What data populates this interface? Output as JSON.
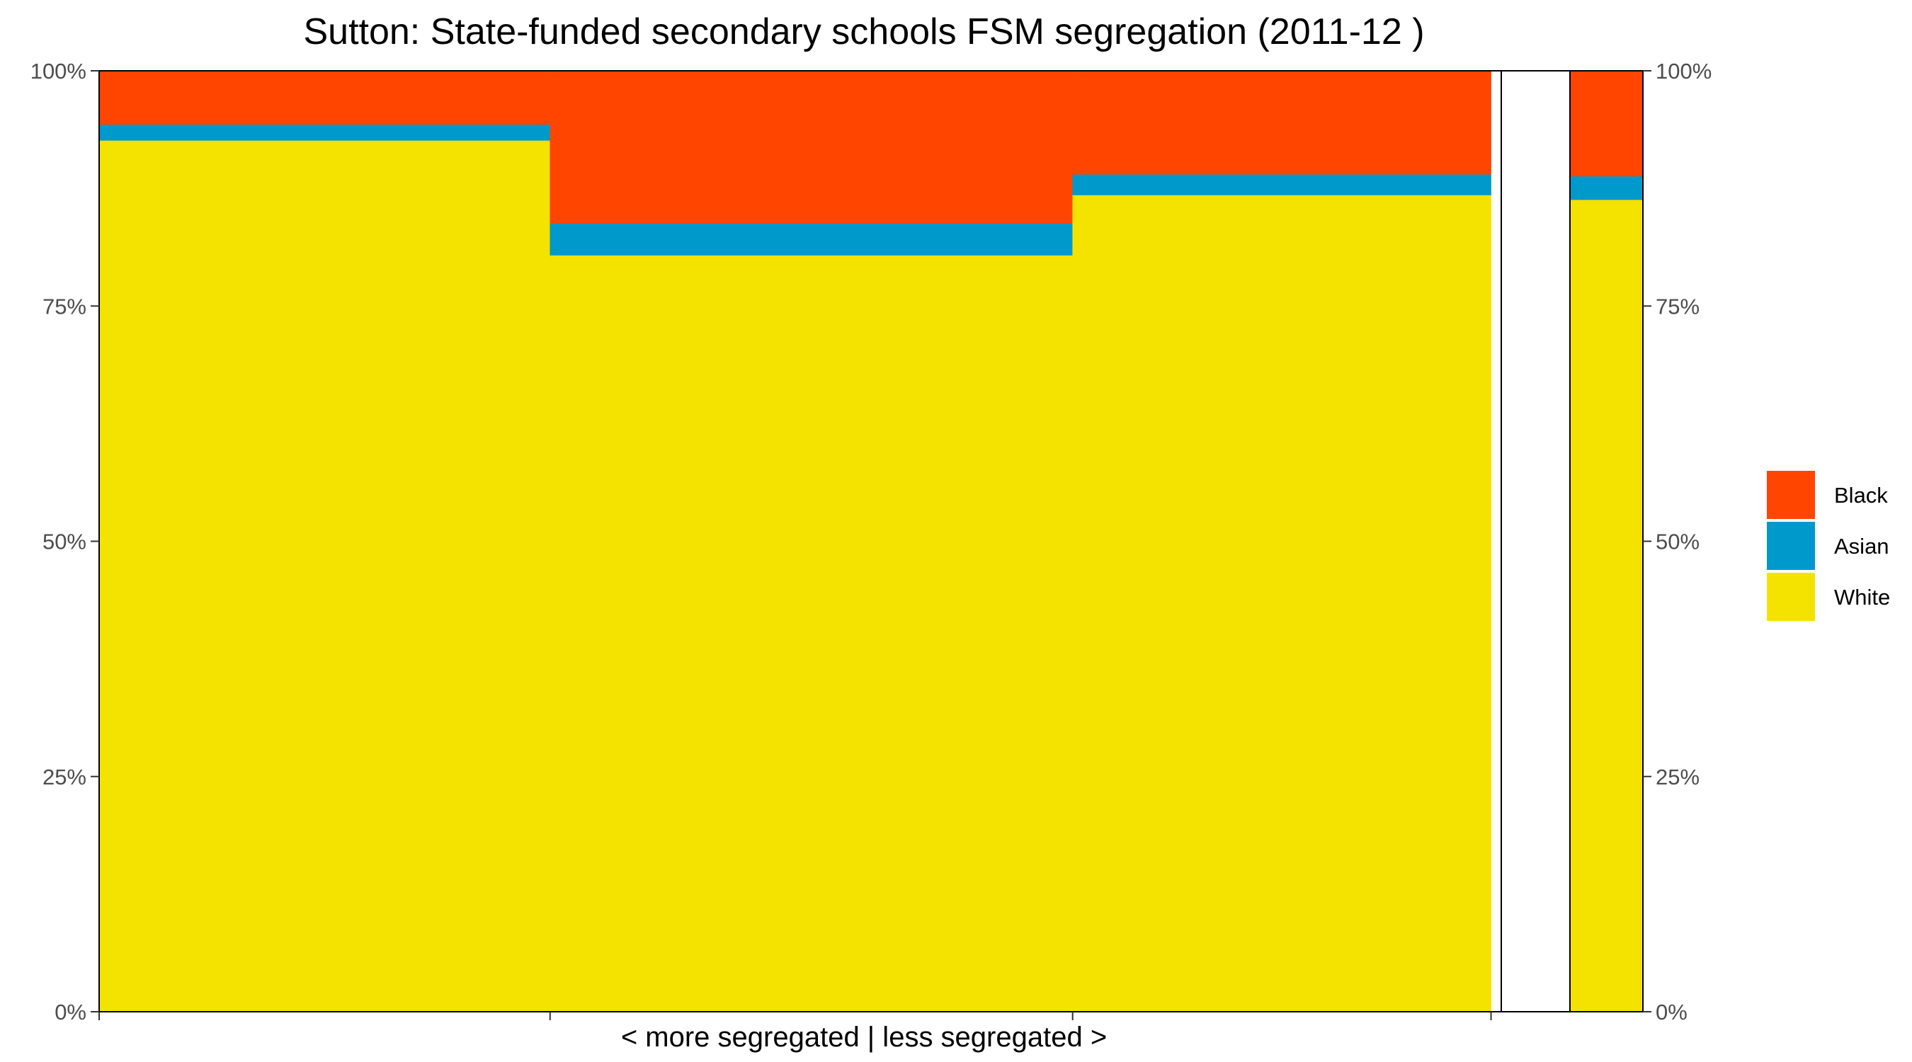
{
  "chart_data": {
    "type": "bar",
    "title": "Sutton: State-funded secondary schools FSM segregation (2011-12 )",
    "xlabel": "< more segregated | less segregated >",
    "ylabel": "",
    "ylim": [
      0,
      1
    ],
    "y_ticks_left": [
      "0%",
      "25%",
      "50%",
      "75%",
      "100%"
    ],
    "y_ticks_right": [
      "0%",
      "25%",
      "50%",
      "75%",
      "100%"
    ],
    "colors": {
      "White": "#f4e300",
      "Asian": "#0099cc",
      "Black": "#ff4500"
    },
    "legend": {
      "placement": "right",
      "entries": [
        "Black",
        "Asian",
        "White"
      ]
    },
    "grid": false,
    "groups": [
      {
        "width_fraction": 0.3216,
        "White": 0.926,
        "Asian": 0.017,
        "Black": 0.057
      },
      {
        "width_fraction": 0.3727,
        "White": 0.804,
        "Asian": 0.034,
        "Black": 0.162
      },
      {
        "width_fraction": 0.2984,
        "White": 0.868,
        "Asian": 0.022,
        "Black": 0.11
      }
    ],
    "overall": {
      "White": 0.863,
      "Asian": 0.025,
      "Black": 0.112
    }
  }
}
